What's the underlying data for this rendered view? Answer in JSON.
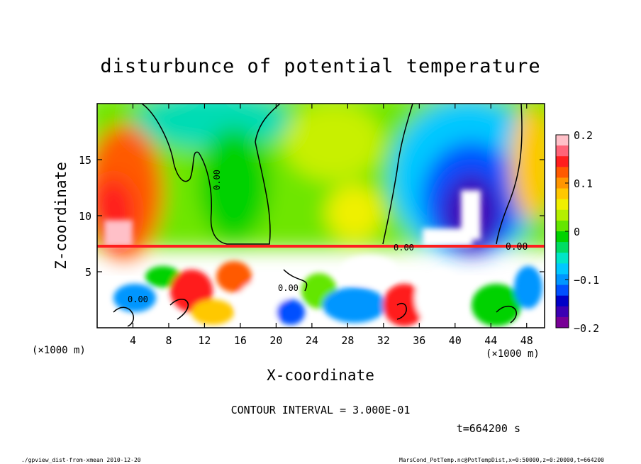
{
  "chart_data": {
    "type": "heatmap",
    "title": "disturbunce of potential temperature",
    "xlabel": "X-coordinate",
    "ylabel": "Z-coordinate",
    "x_unit": "(×1000 m)",
    "y_unit": "(×1000 m)",
    "xlim": [
      0,
      50
    ],
    "ylim": [
      0,
      20
    ],
    "x_ticks": [
      4,
      8,
      12,
      16,
      20,
      24,
      28,
      32,
      36,
      40,
      44,
      48
    ],
    "y_ticks": [
      5,
      10,
      15
    ],
    "colorbar": {
      "range": [
        -0.2,
        0.2
      ],
      "tick_values": [
        0.2,
        0.1,
        0,
        -0.1,
        -0.2
      ],
      "tick_labels": [
        "0.2",
        "0.1",
        "0",
        "−0.1",
        "−0.2"
      ],
      "colors": [
        "#ffc0c8",
        "#ff6478",
        "#ff1e1e",
        "#ff5a00",
        "#ff9600",
        "#ffc800",
        "#f0f000",
        "#b4f000",
        "#64e600",
        "#00d200",
        "#00dc64",
        "#00e6c8",
        "#00c8ff",
        "#0096ff",
        "#0050ff",
        "#0000c8",
        "#3c00b4",
        "#780096"
      ]
    },
    "contour_labels": [
      "0.00",
      "0.00",
      "0.00",
      "0.00",
      "0.00"
    ],
    "annotations": {
      "contour_interval": "CONTOUR INTERVAL = 3.000E-01",
      "time": "t=664200 s",
      "footer_left": "./gpview_dist-from-xmean  2010-12-20",
      "footer_right": "MarsCond_PotTemp.nc@PotTempDist,x=0:50000,z=0:20000,t=664200"
    },
    "value_field_samples": [
      {
        "x": 2,
        "z": 12,
        "value": 0.15
      },
      {
        "x": 2,
        "z": 9,
        "value": 0.2
      },
      {
        "x": 12,
        "z": 17,
        "value": 0.02
      },
      {
        "x": 18,
        "z": 12,
        "value": 0.0
      },
      {
        "x": 26,
        "z": 15,
        "value": 0.06
      },
      {
        "x": 36,
        "z": 14,
        "value": -0.1
      },
      {
        "x": 41,
        "z": 11,
        "value": -0.2
      },
      {
        "x": 47,
        "z": 14,
        "value": 0.03
      }
    ]
  }
}
